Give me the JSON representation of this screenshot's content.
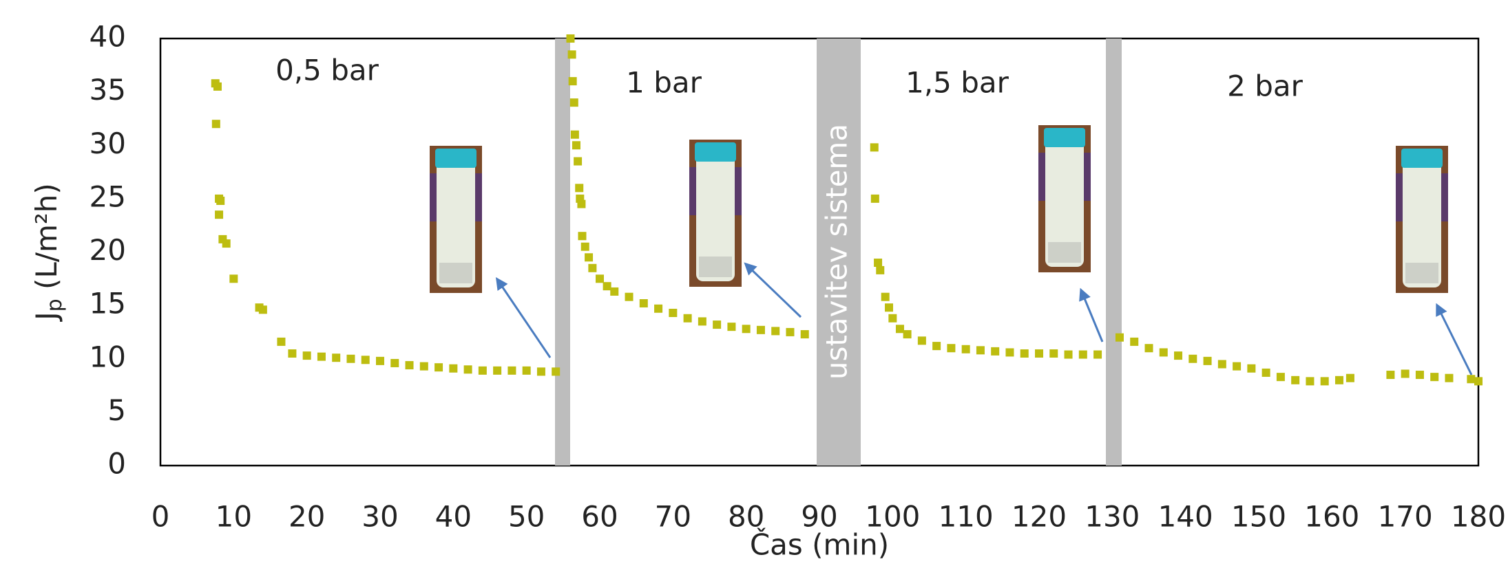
{
  "chart_data": {
    "type": "scatter",
    "xlabel": "Čas (min)",
    "ylabel": {
      "main": "J",
      "sub": "p",
      "unit": " (L/m²h)"
    },
    "annotations": [
      "0,5 bar",
      "1 bar",
      "1,5 bar",
      "2 bar",
      "ustavitev sistema"
    ],
    "xlim": [
      0,
      180
    ],
    "xticks": [
      0,
      10,
      20,
      30,
      40,
      50,
      60,
      70,
      80,
      90,
      100,
      110,
      120,
      130,
      140,
      150,
      160,
      170,
      180
    ],
    "ylim": [
      0,
      40
    ],
    "yticks": [
      0,
      5,
      10,
      15,
      20,
      25,
      30,
      35,
      40
    ],
    "grid": false,
    "series": [
      {
        "color": "#bdbd10",
        "x": [
          7.5,
          7.8,
          7.6,
          8,
          8.2,
          8,
          8.5,
          9,
          10,
          13.5,
          14,
          16.5,
          18,
          20,
          22,
          24,
          26,
          28,
          30,
          32,
          34,
          36,
          38,
          40,
          42,
          44,
          46,
          48,
          50,
          52,
          54,
          56,
          56.2,
          56.3,
          56.5,
          56.6,
          56.8,
          57,
          57.2,
          57.3,
          57.5,
          57.6,
          58,
          58.5,
          59,
          60,
          61,
          62,
          64,
          66,
          68,
          70,
          72,
          74,
          76,
          78,
          80,
          82,
          84,
          86,
          88,
          97.5,
          97.6,
          98,
          98.3,
          99,
          99.5,
          100,
          101,
          102,
          104,
          106,
          108,
          110,
          112,
          114,
          116,
          118,
          120,
          122,
          124,
          126,
          128,
          131,
          133,
          135,
          137,
          139,
          141,
          143,
          145,
          147,
          149,
          151,
          153,
          155,
          157,
          159,
          161,
          162.5,
          168,
          170,
          172,
          174,
          176,
          179,
          180
        ],
        "values": [
          35.8,
          35.5,
          32,
          25,
          24.8,
          23.5,
          21.2,
          20.8,
          17.5,
          14.8,
          14.6,
          11.6,
          10.5,
          10.3,
          10.2,
          10.1,
          10,
          9.9,
          9.8,
          9.6,
          9.4,
          9.3,
          9.2,
          9.1,
          9,
          8.9,
          8.9,
          8.9,
          8.9,
          8.8,
          8.8,
          40,
          38.5,
          36,
          34,
          31,
          30,
          28.5,
          26,
          25,
          24.5,
          21.5,
          20.5,
          19.5,
          18.5,
          17.5,
          16.8,
          16.3,
          15.8,
          15.2,
          14.7,
          14.3,
          13.8,
          13.5,
          13.2,
          13,
          12.8,
          12.7,
          12.6,
          12.5,
          12.3,
          29.8,
          25,
          19,
          18.3,
          15.8,
          14.8,
          13.8,
          12.8,
          12.3,
          11.7,
          11.2,
          11,
          10.9,
          10.8,
          10.7,
          10.6,
          10.5,
          10.5,
          10.5,
          10.4,
          10.4,
          10.4,
          12,
          11.6,
          11,
          10.6,
          10.3,
          10,
          9.8,
          9.5,
          9.3,
          9.1,
          8.7,
          8.3,
          8,
          7.9,
          7.9,
          8,
          8.2,
          8.5,
          8.6,
          8.5,
          8.3,
          8.2,
          8.1,
          7.9
        ]
      }
    ]
  }
}
